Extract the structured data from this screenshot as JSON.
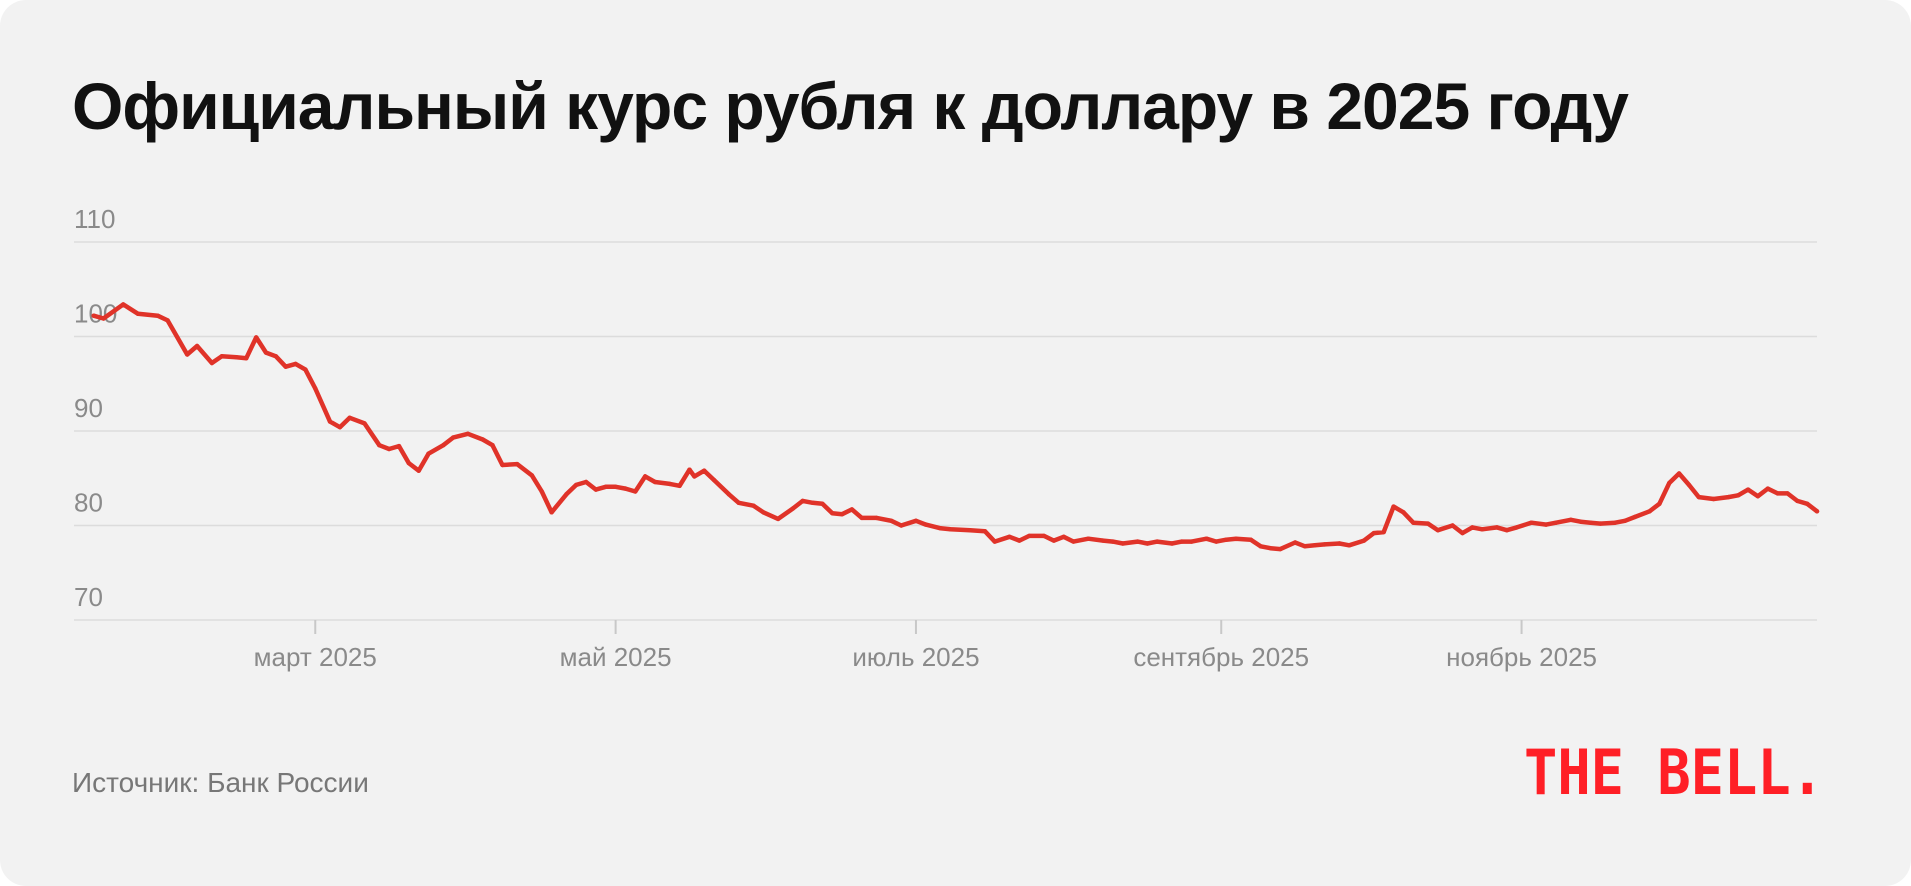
{
  "title": "Официальный курс рубля к доллару в 2025 году",
  "source": "Источник: Банк России",
  "logo_text": "THE BELL.",
  "colors": {
    "line": "#e03329",
    "logo": "#ff1f26",
    "grid": "#dcdcdc",
    "axis_text": "#8a8a8a",
    "background": "#f2f2f2"
  },
  "chart_data": {
    "type": "line",
    "title": "Официальный курс рубля к доллару в 2025 году",
    "xlabel": "",
    "ylabel": "",
    "ylim": [
      70,
      110
    ],
    "yticks": [
      70,
      80,
      90,
      100,
      110
    ],
    "xlim": [
      "2025-01-11",
      "2025-12-31"
    ],
    "xticks": [
      {
        "date": "2025-03-01",
        "label": "март 2025"
      },
      {
        "date": "2025-05-01",
        "label": "май 2025"
      },
      {
        "date": "2025-07-01",
        "label": "июль 2025"
      },
      {
        "date": "2025-09-01",
        "label": "сентябрь 2025"
      },
      {
        "date": "2025-11-01",
        "label": "ноябрь 2025"
      }
    ],
    "grid": true,
    "series": [
      {
        "points": [
          [
            "2025-01-15",
            102.2
          ],
          [
            "2025-01-17",
            101.9
          ],
          [
            "2025-01-21",
            103.4
          ],
          [
            "2025-01-24",
            102.4
          ],
          [
            "2025-01-28",
            102.2
          ],
          [
            "2025-01-30",
            101.7
          ],
          [
            "2025-02-03",
            98.1
          ],
          [
            "2025-02-05",
            99.0
          ],
          [
            "2025-02-08",
            97.2
          ],
          [
            "2025-02-10",
            97.9
          ],
          [
            "2025-02-13",
            97.8
          ],
          [
            "2025-02-15",
            97.7
          ],
          [
            "2025-02-17",
            99.9
          ],
          [
            "2025-02-19",
            98.3
          ],
          [
            "2025-02-21",
            97.9
          ],
          [
            "2025-02-23",
            96.8
          ],
          [
            "2025-02-25",
            97.1
          ],
          [
            "2025-02-27",
            96.5
          ],
          [
            "2025-03-01",
            94.5
          ],
          [
            "2025-03-04",
            91.0
          ],
          [
            "2025-03-06",
            90.4
          ],
          [
            "2025-03-08",
            91.4
          ],
          [
            "2025-03-11",
            90.8
          ],
          [
            "2025-03-14",
            88.5
          ],
          [
            "2025-03-16",
            88.1
          ],
          [
            "2025-03-18",
            88.4
          ],
          [
            "2025-03-20",
            86.6
          ],
          [
            "2025-03-22",
            85.8
          ],
          [
            "2025-03-24",
            87.6
          ],
          [
            "2025-03-27",
            88.5
          ],
          [
            "2025-03-29",
            89.3
          ],
          [
            "2025-04-01",
            89.7
          ],
          [
            "2025-04-04",
            89.1
          ],
          [
            "2025-04-06",
            88.5
          ],
          [
            "2025-04-08",
            86.4
          ],
          [
            "2025-04-11",
            86.5
          ],
          [
            "2025-04-14",
            85.3
          ],
          [
            "2025-04-16",
            83.6
          ],
          [
            "2025-04-18",
            81.4
          ],
          [
            "2025-04-21",
            83.3
          ],
          [
            "2025-04-23",
            84.3
          ],
          [
            "2025-04-25",
            84.6
          ],
          [
            "2025-04-27",
            83.8
          ],
          [
            "2025-04-29",
            84.1
          ],
          [
            "2025-05-01",
            84.1
          ],
          [
            "2025-05-03",
            83.9
          ],
          [
            "2025-05-05",
            83.6
          ],
          [
            "2025-05-07",
            85.2
          ],
          [
            "2025-05-09",
            84.6
          ],
          [
            "2025-05-12",
            84.4
          ],
          [
            "2025-05-14",
            84.2
          ],
          [
            "2025-05-16",
            85.9
          ],
          [
            "2025-05-17",
            85.2
          ],
          [
            "2025-05-19",
            85.8
          ],
          [
            "2025-05-21",
            84.8
          ],
          [
            "2025-05-24",
            83.3
          ],
          [
            "2025-05-26",
            82.4
          ],
          [
            "2025-05-29",
            82.1
          ],
          [
            "2025-05-31",
            81.4
          ],
          [
            "2025-06-03",
            80.7
          ],
          [
            "2025-06-06",
            81.8
          ],
          [
            "2025-06-08",
            82.6
          ],
          [
            "2025-06-10",
            82.4
          ],
          [
            "2025-06-12",
            82.3
          ],
          [
            "2025-06-14",
            81.3
          ],
          [
            "2025-06-16",
            81.2
          ],
          [
            "2025-06-18",
            81.7
          ],
          [
            "2025-06-20",
            80.8
          ],
          [
            "2025-06-23",
            80.8
          ],
          [
            "2025-06-26",
            80.5
          ],
          [
            "2025-06-28",
            80.0
          ],
          [
            "2025-07-01",
            80.5
          ],
          [
            "2025-07-03",
            80.1
          ],
          [
            "2025-07-06",
            79.7
          ],
          [
            "2025-07-08",
            79.6
          ],
          [
            "2025-07-12",
            79.5
          ],
          [
            "2025-07-15",
            79.4
          ],
          [
            "2025-07-17",
            78.3
          ],
          [
            "2025-07-20",
            78.8
          ],
          [
            "2025-07-22",
            78.4
          ],
          [
            "2025-07-24",
            78.9
          ],
          [
            "2025-07-27",
            78.9
          ],
          [
            "2025-07-29",
            78.4
          ],
          [
            "2025-07-31",
            78.8
          ],
          [
            "2025-08-02",
            78.3
          ],
          [
            "2025-08-05",
            78.6
          ],
          [
            "2025-08-08",
            78.4
          ],
          [
            "2025-08-10",
            78.3
          ],
          [
            "2025-08-12",
            78.1
          ],
          [
            "2025-08-15",
            78.3
          ],
          [
            "2025-08-17",
            78.1
          ],
          [
            "2025-08-19",
            78.3
          ],
          [
            "2025-08-22",
            78.1
          ],
          [
            "2025-08-24",
            78.3
          ],
          [
            "2025-08-26",
            78.3
          ],
          [
            "2025-08-29",
            78.6
          ],
          [
            "2025-08-31",
            78.3
          ],
          [
            "2025-09-02",
            78.5
          ],
          [
            "2025-09-04",
            78.6
          ],
          [
            "2025-09-07",
            78.5
          ],
          [
            "2025-09-09",
            77.8
          ],
          [
            "2025-09-11",
            77.6
          ],
          [
            "2025-09-13",
            77.5
          ],
          [
            "2025-09-16",
            78.2
          ],
          [
            "2025-09-18",
            77.8
          ],
          [
            "2025-09-20",
            77.9
          ],
          [
            "2025-09-22",
            78.0
          ],
          [
            "2025-09-25",
            78.1
          ],
          [
            "2025-09-27",
            77.9
          ],
          [
            "2025-09-30",
            78.4
          ],
          [
            "2025-10-02",
            79.2
          ],
          [
            "2025-10-04",
            79.3
          ],
          [
            "2025-10-06",
            82.0
          ],
          [
            "2025-10-08",
            81.4
          ],
          [
            "2025-10-10",
            80.3
          ],
          [
            "2025-10-13",
            80.2
          ],
          [
            "2025-10-15",
            79.5
          ],
          [
            "2025-10-18",
            80.0
          ],
          [
            "2025-10-20",
            79.2
          ],
          [
            "2025-10-22",
            79.8
          ],
          [
            "2025-10-24",
            79.6
          ],
          [
            "2025-10-27",
            79.8
          ],
          [
            "2025-10-29",
            79.5
          ],
          [
            "2025-10-31",
            79.8
          ],
          [
            "2025-11-03",
            80.3
          ],
          [
            "2025-11-06",
            80.1
          ],
          [
            "2025-11-08",
            80.3
          ],
          [
            "2025-11-11",
            80.6
          ],
          [
            "2025-11-13",
            80.4
          ],
          [
            "2025-11-15",
            80.3
          ],
          [
            "2025-11-17",
            80.2
          ],
          [
            "2025-11-20",
            80.3
          ],
          [
            "2025-11-22",
            80.5
          ],
          [
            "2025-11-24",
            80.9
          ],
          [
            "2025-11-27",
            81.5
          ],
          [
            "2025-11-29",
            82.3
          ],
          [
            "2025-12-01",
            84.5
          ],
          [
            "2025-12-03",
            85.5
          ],
          [
            "2025-12-05",
            84.3
          ],
          [
            "2025-12-07",
            83.0
          ],
          [
            "2025-12-10",
            82.8
          ],
          [
            "2025-12-13",
            83.0
          ],
          [
            "2025-12-15",
            83.2
          ],
          [
            "2025-12-17",
            83.8
          ],
          [
            "2025-12-19",
            83.1
          ],
          [
            "2025-12-21",
            83.9
          ],
          [
            "2025-12-23",
            83.4
          ],
          [
            "2025-12-25",
            83.4
          ],
          [
            "2025-12-27",
            82.6
          ],
          [
            "2025-12-29",
            82.3
          ],
          [
            "2025-12-31",
            81.5
          ]
        ]
      }
    ]
  }
}
